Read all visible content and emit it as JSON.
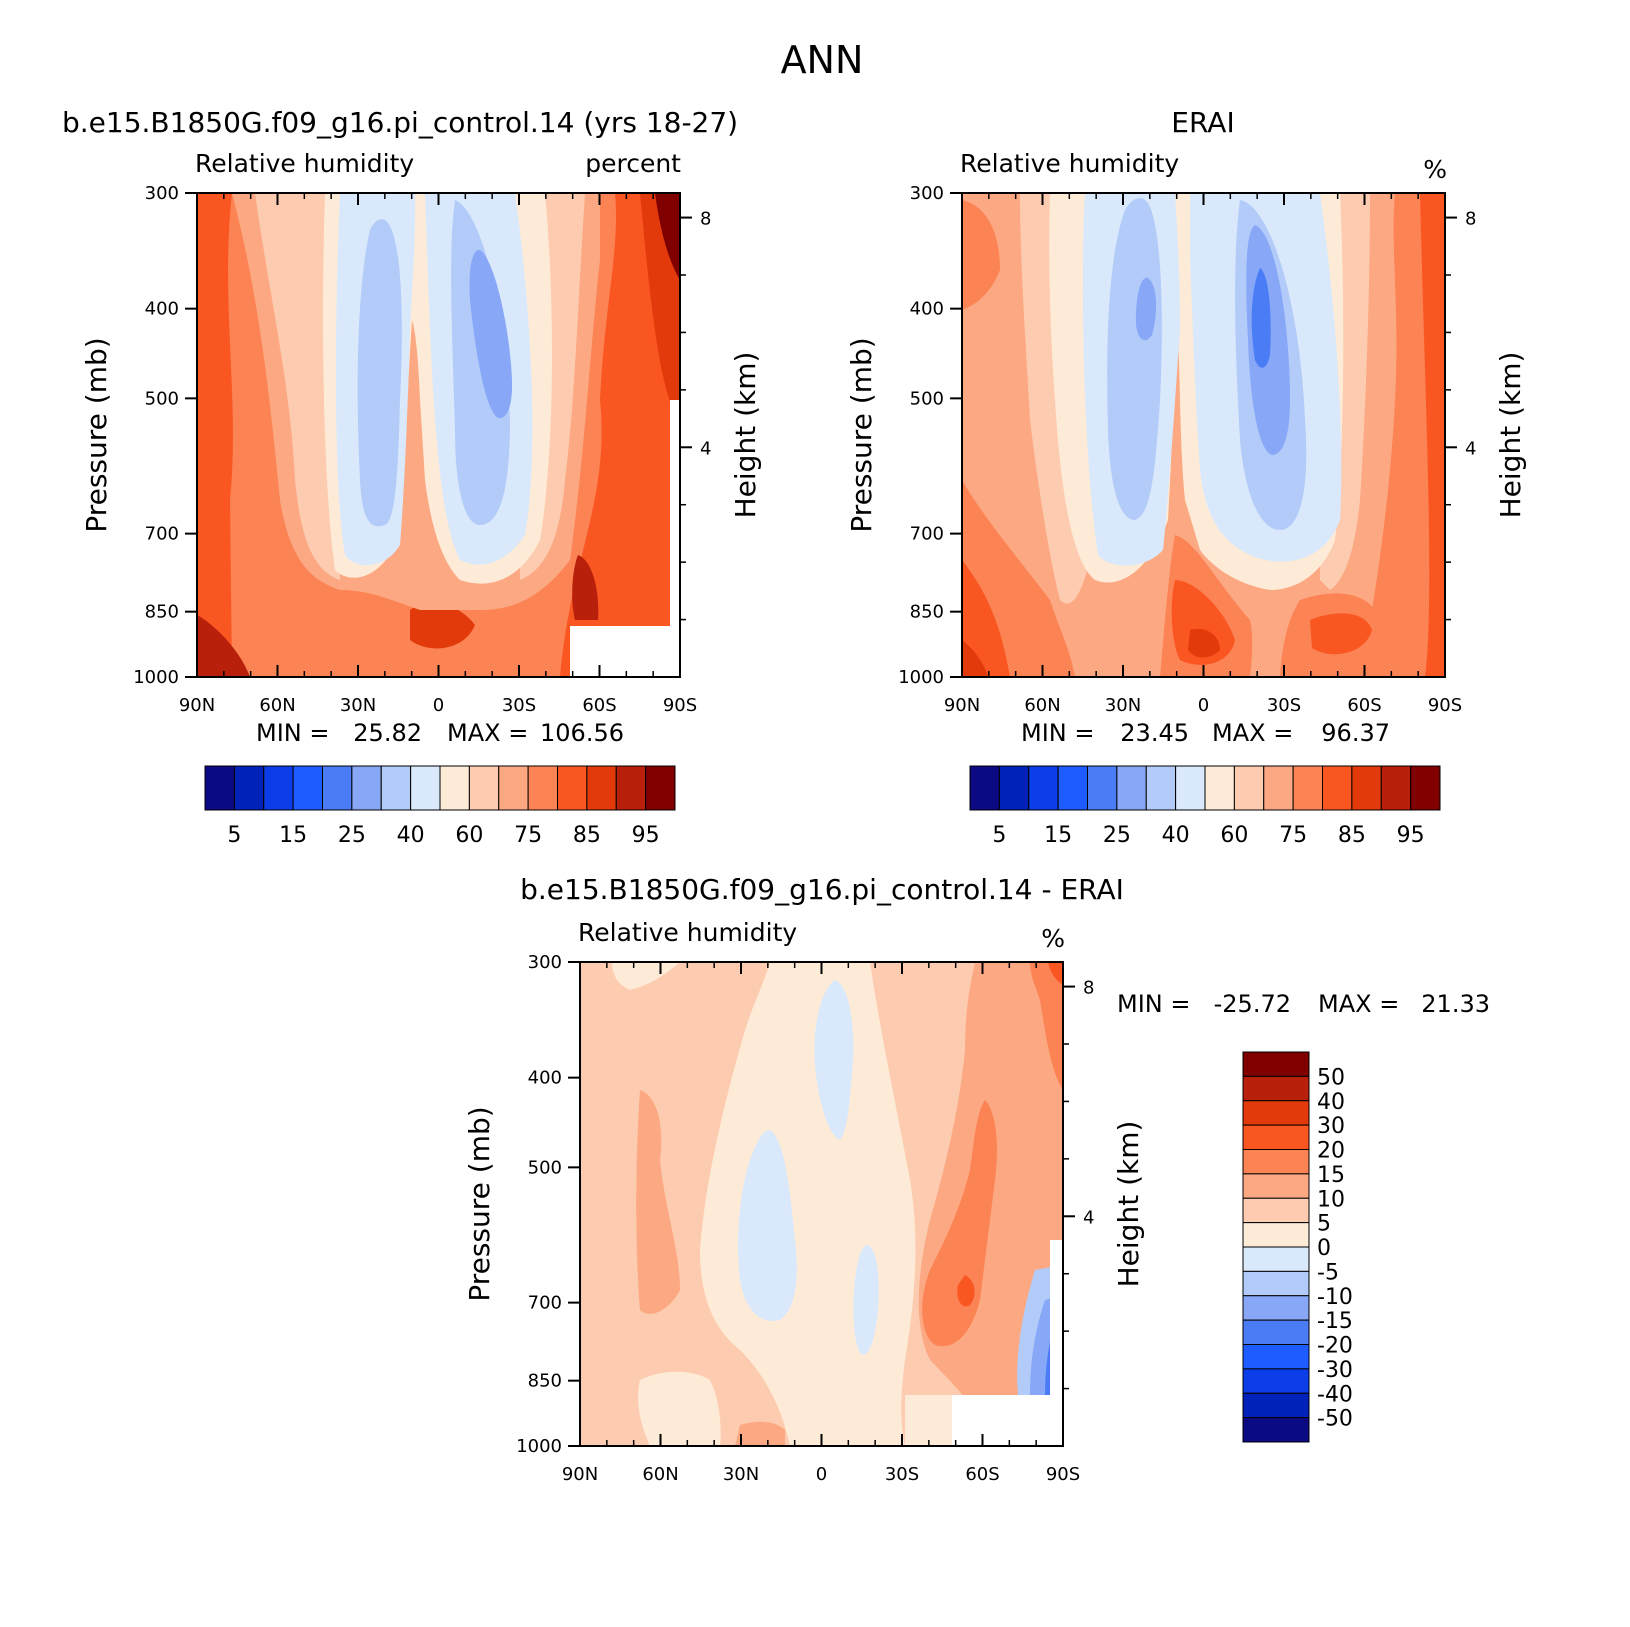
{
  "figure": {
    "title": "ANN"
  },
  "chart_data": [
    {
      "type": "heatmap",
      "id": "model",
      "title": "b.e15.B1850G.f09_g16.pi_control.14 (yrs 18-27)",
      "left_title": "Relative humidity",
      "units": "percent",
      "ylabel": "Pressure (mb)",
      "y2label": "Height (km)",
      "x_ticks": [
        "90N",
        "60N",
        "30N",
        "0",
        "30S",
        "60S",
        "90S"
      ],
      "x_values": [
        90,
        60,
        30,
        0,
        -30,
        -60,
        -90
      ],
      "y_ticks": [
        "300",
        "400",
        "500",
        "700",
        "850",
        "1000"
      ],
      "y_values": [
        300,
        400,
        500,
        700,
        850,
        1000
      ],
      "y2_ticks": [
        "8",
        "4"
      ],
      "y2_values": [
        8,
        4
      ],
      "ylim": [
        1000,
        300
      ],
      "xlim": [
        90,
        -90
      ],
      "min_label": "MIN =",
      "min_value": "25.82",
      "max_label": "MAX =",
      "max_value": "106.56",
      "colorbar": {
        "orientation": "horizontal",
        "labels": [
          "5",
          "15",
          "25",
          "40",
          "60",
          "75",
          "85",
          "95"
        ],
        "colors": [
          "#0b0a82",
          "#0022b8",
          "#0b3de8",
          "#1f5cff",
          "#4a7df5",
          "#88a8f7",
          "#b3cbf9",
          "#d9e9fb",
          "#fdebd7",
          "#fdccb0",
          "#fca983",
          "#fb8354",
          "#fa5622",
          "#e33a0c",
          "#b8200b",
          "#800000"
        ]
      },
      "fields": [
        {
          "name": "background",
          "color": "#fb8354"
        },
        {
          "name": "mid-lat band",
          "color": "#fca983"
        },
        {
          "name": "subtropical dry N",
          "color": "#fdccb0"
        },
        {
          "name": "subtropical dry S",
          "color": "#fdccb0"
        },
        {
          "name": "dry N",
          "color": "#d9e9fb"
        },
        {
          "name": "dry S",
          "color": "#d9e9fb"
        },
        {
          "name": "core N",
          "color": "#b3cbf9"
        },
        {
          "name": "core S",
          "color": "#b3cbf9"
        },
        {
          "name": "core S inner",
          "color": "#88a8f7"
        }
      ]
    },
    {
      "type": "heatmap",
      "id": "obs",
      "title": "ERAI",
      "left_title": "Relative humidity",
      "units": "%",
      "ylabel": "Pressure (mb)",
      "y2label": "Height (km)",
      "x_ticks": [
        "90N",
        "60N",
        "30N",
        "0",
        "30S",
        "60S",
        "90S"
      ],
      "x_values": [
        90,
        60,
        30,
        0,
        -30,
        -60,
        -90
      ],
      "y_ticks": [
        "300",
        "400",
        "500",
        "700",
        "850",
        "1000"
      ],
      "y_values": [
        300,
        400,
        500,
        700,
        850,
        1000
      ],
      "y2_ticks": [
        "8",
        "4"
      ],
      "y2_values": [
        8,
        4
      ],
      "ylim": [
        1000,
        300
      ],
      "xlim": [
        90,
        -90
      ],
      "min_label": "MIN =",
      "min_value": "23.45",
      "max_label": "MAX =",
      "max_value": "96.37",
      "colorbar": {
        "orientation": "horizontal",
        "labels": [
          "5",
          "15",
          "25",
          "40",
          "60",
          "75",
          "85",
          "95"
        ],
        "colors": [
          "#0b0a82",
          "#0022b8",
          "#0b3de8",
          "#1f5cff",
          "#4a7df5",
          "#88a8f7",
          "#b3cbf9",
          "#d9e9fb",
          "#fdebd7",
          "#fdccb0",
          "#fca983",
          "#fb8354",
          "#fa5622",
          "#e33a0c",
          "#b8200b",
          "#800000"
        ]
      }
    },
    {
      "type": "heatmap",
      "id": "diff",
      "title": "b.e15.B1850G.f09_g16.pi_control.14 - ERAI",
      "left_title": "Relative humidity",
      "units": "%",
      "ylabel": "Pressure (mb)",
      "y2label": "Height (km)",
      "x_ticks": [
        "90N",
        "60N",
        "30N",
        "0",
        "30S",
        "60S",
        "90S"
      ],
      "x_values": [
        90,
        60,
        30,
        0,
        -30,
        -60,
        -90
      ],
      "y_ticks": [
        "300",
        "400",
        "500",
        "700",
        "850",
        "1000"
      ],
      "y_values": [
        300,
        400,
        500,
        700,
        850,
        1000
      ],
      "y2_ticks": [
        "8",
        "4"
      ],
      "y2_values": [
        8,
        4
      ],
      "ylim": [
        1000,
        300
      ],
      "xlim": [
        90,
        -90
      ],
      "min_label": "MIN =",
      "min_value": "-25.72",
      "max_label": "MAX =",
      "max_value": "21.33",
      "colorbar": {
        "orientation": "vertical",
        "labels": [
          "50",
          "40",
          "30",
          "20",
          "15",
          "10",
          "5",
          "0",
          "-5",
          "-10",
          "-15",
          "-20",
          "-30",
          "-40",
          "-50"
        ],
        "colors": [
          "#800000",
          "#b8200b",
          "#e33a0c",
          "#fa5622",
          "#fb8354",
          "#fca983",
          "#fdccb0",
          "#fdebd7",
          "#d9e9fb",
          "#b3cbf9",
          "#88a8f7",
          "#4a7df5",
          "#1f5cff",
          "#0b3de8",
          "#0022b8",
          "#0b0a82"
        ]
      }
    }
  ]
}
